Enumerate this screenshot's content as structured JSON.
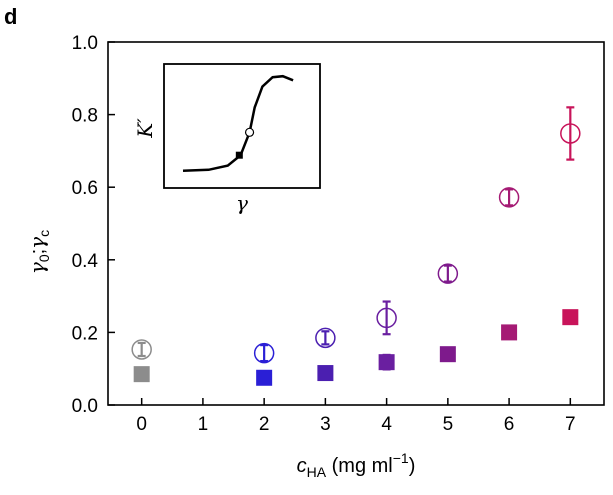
{
  "panel_label": "d",
  "chart_data": {
    "type": "scatter",
    "xlabel": {
      "main": "c",
      "sub": "HA",
      "rest": " (mg ml",
      "sup": "−1",
      "close": ")"
    },
    "ylabel": {
      "g0": "γ",
      "g0sub": "0",
      "sep": ";",
      "gc": "γ",
      "gcsub": "c"
    },
    "xlim": [
      -0.55,
      7.55
    ],
    "ylim": [
      0.0,
      1.0
    ],
    "xticks": [
      0,
      1,
      2,
      3,
      4,
      5,
      6,
      7
    ],
    "yticks": [
      0.0,
      0.2,
      0.4,
      0.6,
      0.8,
      1.0
    ],
    "xtick_labels": [
      "0",
      "1",
      "2",
      "3",
      "4",
      "5",
      "6",
      "7"
    ],
    "ytick_labels": [
      "0.0",
      "0.2",
      "0.4",
      "0.6",
      "0.8",
      "1.0"
    ],
    "grid": false,
    "series": [
      {
        "marker": "filled-square",
        "points": [
          {
            "x": 0,
            "y": 0.085,
            "err": 0.0,
            "color": "#8c8c8c"
          },
          {
            "x": 2,
            "y": 0.075,
            "err": 0.005,
            "color": "#2a1fd6"
          },
          {
            "x": 3,
            "y": 0.088,
            "err": 0.012,
            "color": "#4b1fb0"
          },
          {
            "x": 4,
            "y": 0.118,
            "err": 0.02,
            "color": "#6a1fa0"
          },
          {
            "x": 5,
            "y": 0.14,
            "err": 0.012,
            "color": "#7e1a8c"
          },
          {
            "x": 6,
            "y": 0.2,
            "err": 0.012,
            "color": "#a51a74"
          },
          {
            "x": 7,
            "y": 0.242,
            "err": 0.015,
            "color": "#c8145a"
          }
        ]
      },
      {
        "marker": "open-circle",
        "points": [
          {
            "x": 0,
            "y": 0.153,
            "err": 0.018,
            "color": "#8c8c8c"
          },
          {
            "x": 2,
            "y": 0.143,
            "err": 0.022,
            "color": "#2a1fd6"
          },
          {
            "x": 3,
            "y": 0.185,
            "err": 0.018,
            "color": "#4b1fb0"
          },
          {
            "x": 4,
            "y": 0.24,
            "err": 0.045,
            "color": "#6a1fa0"
          },
          {
            "x": 5,
            "y": 0.362,
            "err": 0.022,
            "color": "#7e1a8c"
          },
          {
            "x": 6,
            "y": 0.572,
            "err": 0.022,
            "color": "#a51a74"
          },
          {
            "x": 7,
            "y": 0.748,
            "err": 0.072,
            "color": "#c8145a"
          }
        ]
      }
    ],
    "inset": {
      "ylabel": "K′",
      "xlabel": "γ",
      "curve": [
        [
          0,
          0.05
        ],
        [
          0.2,
          0.06
        ],
        [
          0.35,
          0.1
        ],
        [
          0.45,
          0.2
        ],
        [
          0.52,
          0.42
        ],
        [
          0.56,
          0.66
        ],
        [
          0.62,
          0.86
        ],
        [
          0.7,
          0.95
        ],
        [
          0.78,
          0.96
        ],
        [
          0.86,
          0.92
        ]
      ],
      "square_marker": [
        0.44,
        0.2
      ],
      "circle_marker": [
        0.52,
        0.42
      ]
    }
  }
}
